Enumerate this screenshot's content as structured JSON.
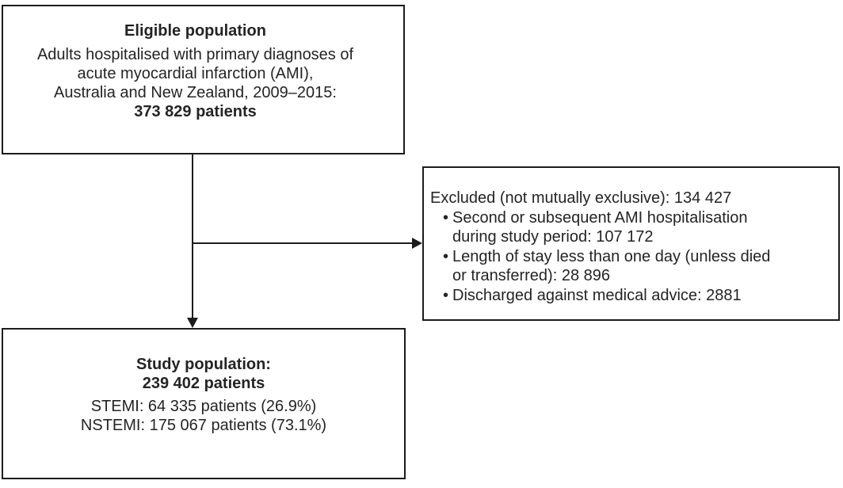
{
  "colors": {
    "line": "#1c1c1c",
    "text": "#242424",
    "background": "#ffffff"
  },
  "eligible_box": {
    "title": "Eligible population",
    "body_lines": [
      "Adults hospitalised with primary diagnoses of",
      "acute myocardial infarction (AMI),",
      "Australia and New Zealand, 2009–2015:"
    ],
    "count": "373 829 patients"
  },
  "excluded_box": {
    "header": "Excluded (not mutually exclusive): 134 427",
    "bullets": [
      "Second or subsequent AMI hospitalisation during study period: 107 172",
      "Length of stay less than one day (unless died or transferred): 28 896",
      "Discharged against medical advice: 2881"
    ]
  },
  "study_box": {
    "title": "Study population:",
    "count": "239 402 patients",
    "body_lines": [
      "STEMI: 64 335 patients (26.9%)",
      "NSTEMI: 175 067 patients (73.1%)"
    ]
  }
}
